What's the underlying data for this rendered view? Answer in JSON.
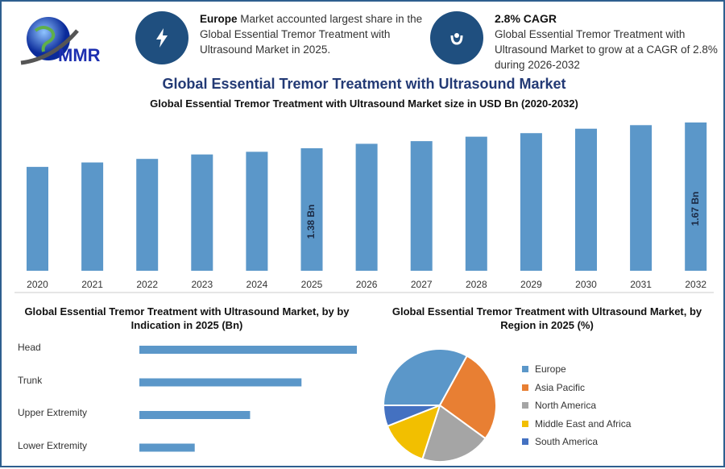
{
  "logo": {
    "text": "MMR"
  },
  "info1": {
    "icon": "lightning-icon",
    "bold": "Europe",
    "text": " Market accounted largest share in the Global Essential Tremor Treatment with Ultrasound Market in 2025."
  },
  "info2": {
    "icon": "growth-hand-icon",
    "title": "2.8% CAGR",
    "text": "Global Essential Tremor Treatment with Ultrasound Market to grow at a CAGR of 2.8% during 2026-2032"
  },
  "main_title": "Global Essential Tremor Treatment with Ultrasound Market",
  "colors": {
    "bar": "#5b97c9",
    "title": "#233a75",
    "icon_bg": "#1f4f7f"
  },
  "chart_data": [
    {
      "type": "bar",
      "title": "Global Essential Tremor Treatment with Ultrasound Market size in USD Bn (2020-2032)",
      "categories": [
        "2020",
        "2021",
        "2022",
        "2023",
        "2024",
        "2025",
        "2026",
        "2027",
        "2028",
        "2029",
        "2030",
        "2031",
        "2032"
      ],
      "values": [
        1.17,
        1.22,
        1.26,
        1.31,
        1.34,
        1.38,
        1.43,
        1.46,
        1.51,
        1.55,
        1.6,
        1.64,
        1.67
      ],
      "data_labels": {
        "2025": "1.38 Bn",
        "2032": "1.67 Bn"
      },
      "ylim": [
        0,
        1.67
      ],
      "grid": false
    },
    {
      "type": "bar",
      "orientation": "horizontal",
      "title": "Global Essential Tremor Treatment with Ultrasound Market, by by Indication in 2025 (Bn)",
      "categories": [
        "Head",
        "Trunk",
        "Upper Extremity",
        "Lower Extremity"
      ],
      "values": [
        0.55,
        0.41,
        0.28,
        0.14
      ]
    },
    {
      "type": "pie",
      "title": "Global Essential Tremor Treatment with Ultrasound Market, by Region in 2025 (%)",
      "legend": "right",
      "slices": [
        {
          "name": "Europe",
          "value": 33,
          "color": "#5b97c9"
        },
        {
          "name": "Asia Pacific",
          "value": 27,
          "color": "#e87f33"
        },
        {
          "name": "North America",
          "value": 20,
          "color": "#a5a5a5"
        },
        {
          "name": "Middle East and Africa",
          "value": 14,
          "color": "#f2bf00"
        },
        {
          "name": "South America",
          "value": 6,
          "color": "#4471c1"
        }
      ]
    }
  ]
}
